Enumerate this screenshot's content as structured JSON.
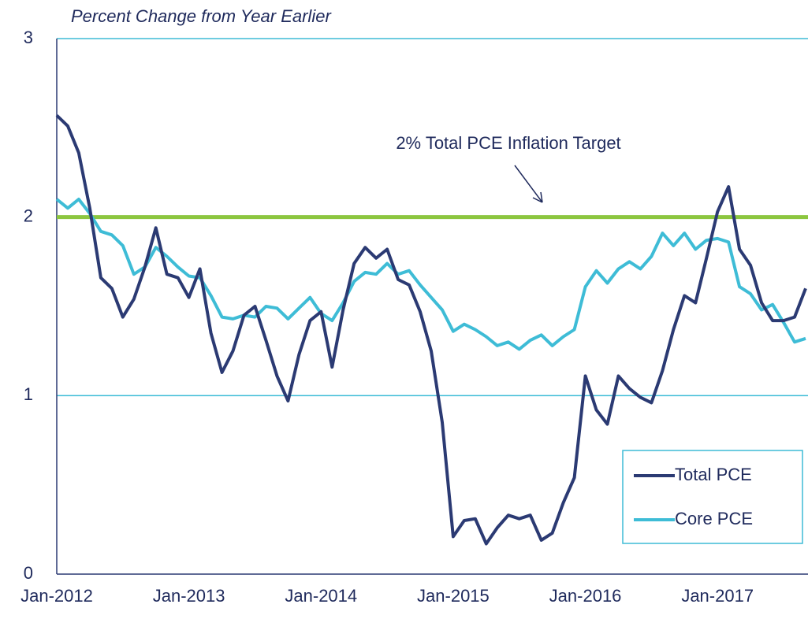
{
  "chart_data": {
    "type": "line",
    "subtitle": "Percent Change from Year Earlier",
    "categories": [
      "Jan-2012",
      null,
      null,
      null,
      null,
      null,
      null,
      null,
      null,
      null,
      null,
      null,
      "Jan-2013",
      null,
      null,
      null,
      null,
      null,
      null,
      null,
      null,
      null,
      null,
      null,
      "Jan-2014",
      null,
      null,
      null,
      null,
      null,
      null,
      null,
      null,
      null,
      null,
      null,
      "Jan-2015",
      null,
      null,
      null,
      null,
      null,
      null,
      null,
      null,
      null,
      null,
      null,
      "Jan-2016",
      null,
      null,
      null,
      null,
      null,
      null,
      null,
      null,
      null,
      null,
      null,
      "Jan-2017",
      null,
      null,
      null,
      null,
      null,
      null,
      null,
      null
    ],
    "series": [
      {
        "name": "Total PCE",
        "color": "#2b3a73",
        "values": [
          2.57,
          2.51,
          2.36,
          2.05,
          1.66,
          1.6,
          1.44,
          1.54,
          1.72,
          1.94,
          1.68,
          1.66,
          1.55,
          1.71,
          1.35,
          1.13,
          1.25,
          1.45,
          1.5,
          1.31,
          1.11,
          0.97,
          1.23,
          1.42,
          1.47,
          1.16,
          1.48,
          1.74,
          1.83,
          1.77,
          1.82,
          1.65,
          1.62,
          1.47,
          1.25,
          0.85,
          0.21,
          0.3,
          0.31,
          0.17,
          0.26,
          0.33,
          0.31,
          0.33,
          0.19,
          0.23,
          0.4,
          0.54,
          1.11,
          0.92,
          0.84,
          1.11,
          1.04,
          0.99,
          0.96,
          1.14,
          1.37,
          1.56,
          1.52,
          1.77,
          2.03,
          2.17,
          1.82,
          1.73,
          1.52,
          1.42,
          1.42,
          1.44,
          1.6
        ]
      },
      {
        "name": "Core PCE",
        "color": "#3ebcd6",
        "values": [
          2.1,
          2.05,
          2.1,
          2.02,
          1.92,
          1.9,
          1.84,
          1.68,
          1.72,
          1.83,
          1.78,
          1.72,
          1.67,
          1.66,
          1.56,
          1.44,
          1.43,
          1.45,
          1.44,
          1.5,
          1.49,
          1.43,
          1.49,
          1.55,
          1.46,
          1.42,
          1.52,
          1.64,
          1.69,
          1.68,
          1.74,
          1.68,
          1.7,
          1.62,
          1.55,
          1.48,
          1.36,
          1.4,
          1.37,
          1.33,
          1.28,
          1.3,
          1.26,
          1.31,
          1.34,
          1.28,
          1.33,
          1.37,
          1.61,
          1.7,
          1.63,
          1.71,
          1.75,
          1.71,
          1.78,
          1.91,
          1.84,
          1.91,
          1.82,
          1.87,
          1.88,
          1.86,
          1.61,
          1.57,
          1.48,
          1.51,
          1.41,
          1.3,
          1.32
        ]
      }
    ],
    "ylim": [
      0,
      3
    ],
    "yticks": [
      0,
      1,
      2,
      3
    ],
    "grid": true,
    "target": {
      "value": 2,
      "label": "2% Total PCE Inflation Target",
      "color": "#8cc63f"
    },
    "legend": "bottom-right"
  }
}
